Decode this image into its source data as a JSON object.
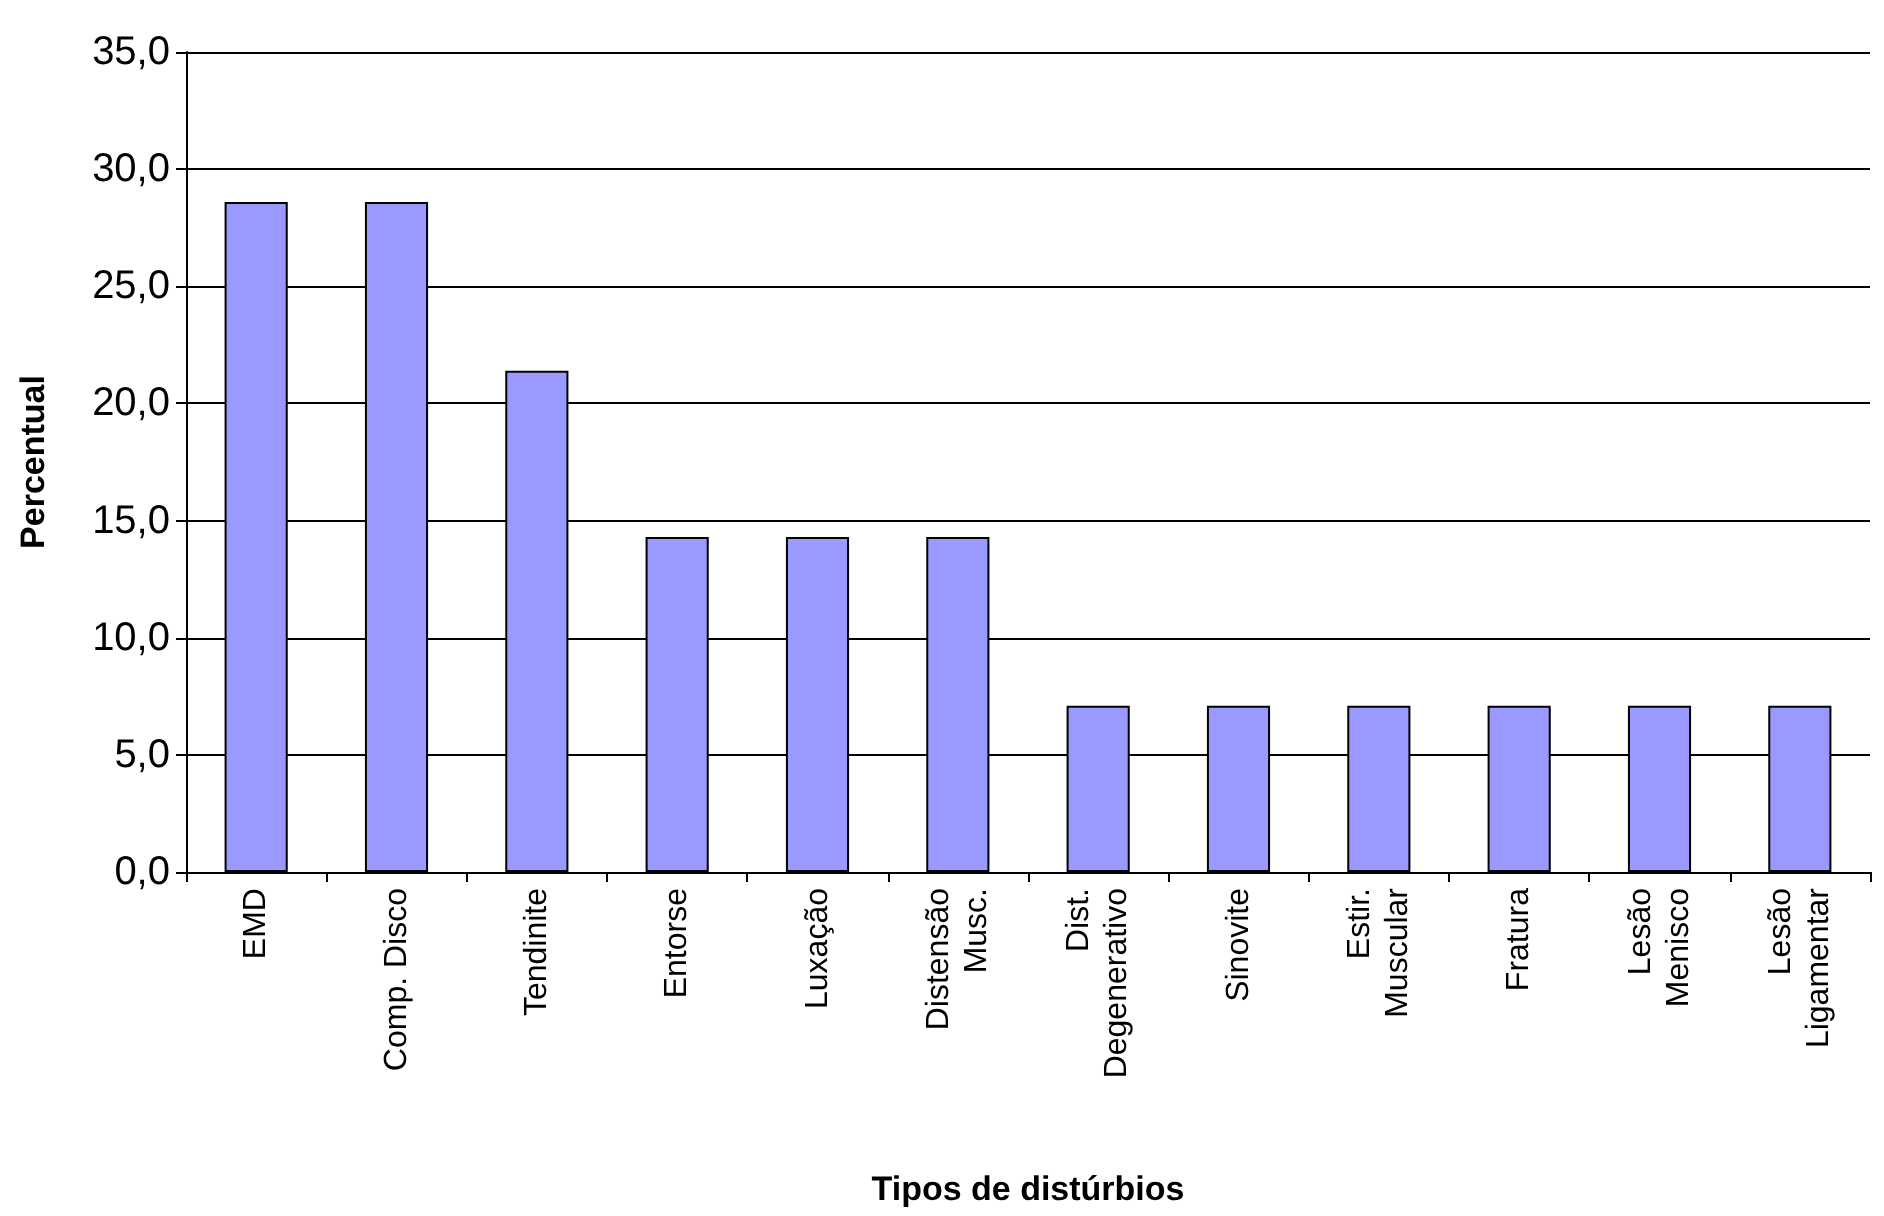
{
  "chart_data": {
    "type": "bar",
    "xlabel": "Tipos de distúrbios",
    "ylabel": "Percentual",
    "categories": [
      "EMD",
      "Comp. Disco",
      "Tendinite",
      "Entorse",
      "Luxação",
      "Distensão\nMusc.",
      "Dist.\nDegenerativo",
      "Sinovite",
      "Estir.\nMuscular",
      "Fratura",
      "Lesão\nMenisco",
      "Lesão\nLigamentar"
    ],
    "values": [
      28.6,
      28.6,
      21.4,
      14.3,
      14.3,
      14.3,
      7.1,
      7.1,
      7.1,
      7.1,
      7.1,
      7.1
    ],
    "color": "#9999ff",
    "ylim": [
      0,
      35
    ],
    "yticks": [
      {
        "value": 0,
        "label": "0,0"
      },
      {
        "value": 5,
        "label": "5,0"
      },
      {
        "value": 10,
        "label": "10,0"
      },
      {
        "value": 15,
        "label": "15,0"
      },
      {
        "value": 20,
        "label": "20,0"
      },
      {
        "value": 25,
        "label": "25,0"
      },
      {
        "value": 30,
        "label": "30,0"
      },
      {
        "value": 35,
        "label": "35,0"
      }
    ],
    "grid": "y"
  }
}
